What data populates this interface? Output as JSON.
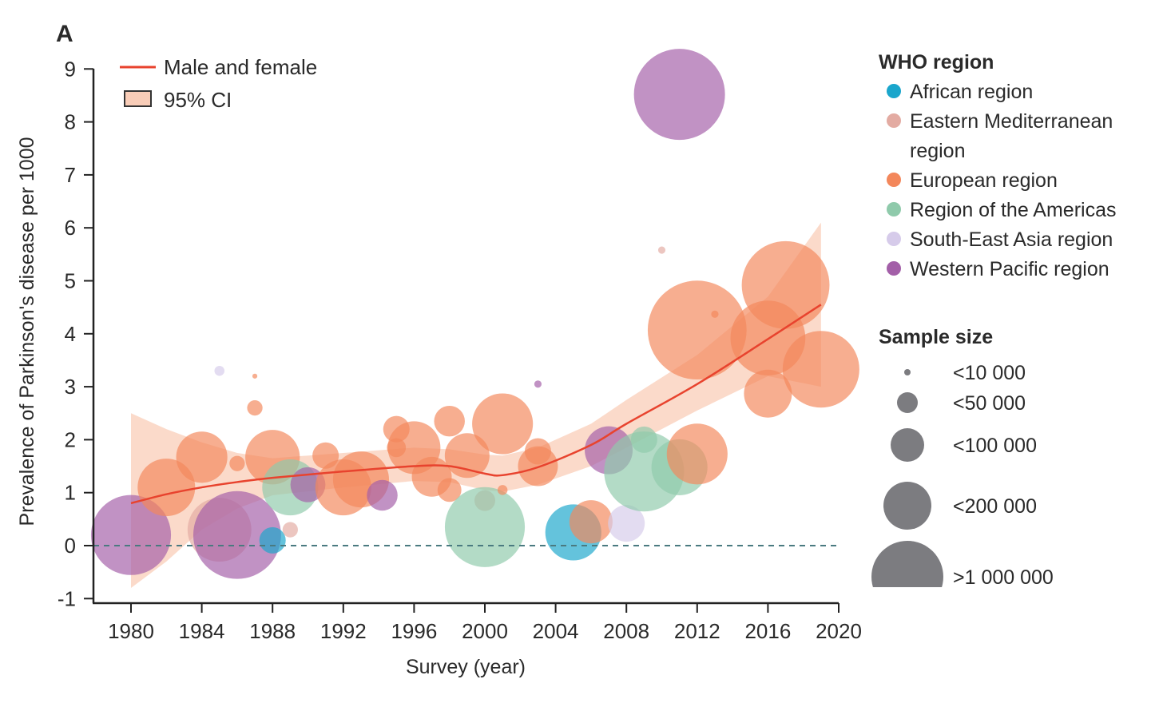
{
  "chart_data": {
    "type": "scatter",
    "panel_label": "A",
    "xlabel": "Survey (year)",
    "ylabel": "Prevalence of Parkinson's disease per 1000",
    "xlim": [
      1978,
      2020
    ],
    "ylim": [
      -1,
      9
    ],
    "x_ticks": [
      1980,
      1984,
      1988,
      1992,
      1996,
      2000,
      2004,
      2008,
      2012,
      2016,
      2020
    ],
    "y_ticks": [
      -1,
      0,
      1,
      2,
      3,
      4,
      5,
      6,
      7,
      8,
      9
    ],
    "reference_line": {
      "y": 0,
      "style": "dashed",
      "color": "#4a7a80"
    },
    "fit_legend": {
      "line_label": "Male and female",
      "ci_label": "95% CI"
    },
    "fit_color": "#e8432e",
    "ci_color": "#f9cdb8",
    "fit": [
      {
        "x": 1980,
        "y": 0.8,
        "lo": -0.8,
        "hi": 2.5
      },
      {
        "x": 1982,
        "y": 0.97,
        "lo": -0.3,
        "hi": 2.2
      },
      {
        "x": 1984,
        "y": 1.1,
        "lo": 0.3,
        "hi": 1.95
      },
      {
        "x": 1986,
        "y": 1.2,
        "lo": 0.7,
        "hi": 1.75
      },
      {
        "x": 1988,
        "y": 1.28,
        "lo": 0.95,
        "hi": 1.65
      },
      {
        "x": 1992,
        "y": 1.4,
        "lo": 1.1,
        "hi": 1.75
      },
      {
        "x": 1996,
        "y": 1.5,
        "lo": 1.22,
        "hi": 1.85
      },
      {
        "x": 1998,
        "y": 1.5,
        "lo": 1.2,
        "hi": 1.82
      },
      {
        "x": 2000,
        "y": 1.36,
        "lo": 1.05,
        "hi": 1.72
      },
      {
        "x": 2001,
        "y": 1.33,
        "lo": 1.02,
        "hi": 1.7
      },
      {
        "x": 2003,
        "y": 1.48,
        "lo": 1.15,
        "hi": 1.85
      },
      {
        "x": 2006,
        "y": 1.9,
        "lo": 1.5,
        "hi": 2.3
      },
      {
        "x": 2008,
        "y": 2.3,
        "lo": 1.85,
        "hi": 2.75
      },
      {
        "x": 2012,
        "y": 3.05,
        "lo": 2.55,
        "hi": 3.6
      },
      {
        "x": 2016,
        "y": 3.9,
        "lo": 3.2,
        "hi": 4.7
      },
      {
        "x": 2019,
        "y": 4.55,
        "lo": 3.0,
        "hi": 6.1
      }
    ],
    "regions_title": "WHO region",
    "regions": [
      {
        "key": "AFR",
        "label": "African region",
        "color": "#1aa6cc"
      },
      {
        "key": "EMR",
        "label": "Eastern Mediterranean region",
        "label_lines": [
          "Eastern Mediterranean",
          "region"
        ],
        "color": "#e3aba2"
      },
      {
        "key": "EUR",
        "label": "European region",
        "color": "#f3875b"
      },
      {
        "key": "AMR",
        "label": "Region of the Americas",
        "color": "#8fcaab"
      },
      {
        "key": "SEAR",
        "label": "South-East Asia region",
        "color": "#d6cbea"
      },
      {
        "key": "WPR",
        "label": "Western Pacific region",
        "color": "#a35fa8"
      }
    ],
    "size_title": "Sample size",
    "size_legend": [
      {
        "label": "<10 000",
        "n": 10000
      },
      {
        "label": "<50 000",
        "n": 50000
      },
      {
        "label": "<100 000",
        "n": 100000
      },
      {
        "label": "<200 000",
        "n": 200000
      },
      {
        "label": ">1 000 000",
        "n": 1000000
      }
    ],
    "points": [
      {
        "x": 1980,
        "y": 0.2,
        "n": 1270000,
        "r": "WPR"
      },
      {
        "x": 1982,
        "y": 1.1,
        "n": 520000,
        "r": "EUR"
      },
      {
        "x": 1984,
        "y": 1.67,
        "n": 310000,
        "r": "EUR"
      },
      {
        "x": 1985,
        "y": 0.3,
        "n": 730000,
        "r": "EMR"
      },
      {
        "x": 1986,
        "y": 0.2,
        "n": 1530000,
        "r": "WPR"
      },
      {
        "x": 1985,
        "y": 3.3,
        "n": 20000,
        "r": "SEAR"
      },
      {
        "x": 1987,
        "y": 3.2,
        "n": 7800,
        "r": "EUR"
      },
      {
        "x": 1987,
        "y": 2.6,
        "n": 35000,
        "r": "EUR"
      },
      {
        "x": 1986,
        "y": 1.55,
        "n": 35000,
        "r": "EUR"
      },
      {
        "x": 1988,
        "y": 1.67,
        "n": 420000,
        "r": "EUR"
      },
      {
        "x": 1989,
        "y": 1.1,
        "n": 470000,
        "r": "AMR"
      },
      {
        "x": 1990,
        "y": 1.15,
        "n": 110000,
        "r": "WPR"
      },
      {
        "x": 1988,
        "y": 0.1,
        "n": 72000,
        "r": "AFR"
      },
      {
        "x": 1989,
        "y": 0.3,
        "n": 35000,
        "r": "EMR"
      },
      {
        "x": 1991,
        "y": 1.7,
        "n": 72000,
        "r": "EUR"
      },
      {
        "x": 1992,
        "y": 1.1,
        "n": 470000,
        "r": "EUR"
      },
      {
        "x": 1993,
        "y": 1.25,
        "n": 470000,
        "r": "EUR"
      },
      {
        "x": 1994.2,
        "y": 0.95,
        "n": 89000,
        "r": "WPR"
      },
      {
        "x": 1995,
        "y": 2.2,
        "n": 72000,
        "r": "EUR"
      },
      {
        "x": 1996,
        "y": 1.85,
        "n": 360000,
        "r": "EUR"
      },
      {
        "x": 1995,
        "y": 1.85,
        "n": 45000,
        "r": "EUR"
      },
      {
        "x": 1997,
        "y": 1.3,
        "n": 144000,
        "r": "EUR"
      },
      {
        "x": 1998,
        "y": 2.35,
        "n": 89000,
        "r": "EUR"
      },
      {
        "x": 1999,
        "y": 1.7,
        "n": 178000,
        "r": "EUR"
      },
      {
        "x": 1998,
        "y": 1.05,
        "n": 62000,
        "r": "EUR"
      },
      {
        "x": 2001,
        "y": 2.3,
        "n": 630000,
        "r": "EUR"
      },
      {
        "x": 2000,
        "y": 0.85,
        "n": 50000,
        "r": "EMR"
      },
      {
        "x": 2000,
        "y": 0.35,
        "n": 1270000,
        "r": "AMR"
      },
      {
        "x": 2001,
        "y": 1.05,
        "n": 20000,
        "r": "EUR"
      },
      {
        "x": 2003,
        "y": 3.05,
        "n": 12500,
        "r": "WPR"
      },
      {
        "x": 2003,
        "y": 1.5,
        "n": 144000,
        "r": "EUR"
      },
      {
        "x": 2003,
        "y": 1.78,
        "n": 72000,
        "r": "EUR"
      },
      {
        "x": 2005,
        "y": 0.25,
        "n": 470000,
        "r": "AFR"
      },
      {
        "x": 2006,
        "y": 0.45,
        "n": 167000,
        "r": "EUR"
      },
      {
        "x": 2008,
        "y": 0.42,
        "n": 122000,
        "r": "SEAR"
      },
      {
        "x": 2007,
        "y": 1.8,
        "n": 200000,
        "r": "WPR"
      },
      {
        "x": 2009,
        "y": 1.4,
        "n": 1270000,
        "r": "AMR"
      },
      {
        "x": 2009,
        "y": 2.0,
        "n": 72000,
        "r": "AMR"
      },
      {
        "x": 2011,
        "y": 1.48,
        "n": 470000,
        "r": "AMR"
      },
      {
        "x": 2012,
        "y": 1.73,
        "n": 630000,
        "r": "EUR"
      },
      {
        "x": 2012,
        "y": 4.07,
        "n": 1900000,
        "r": "EUR"
      },
      {
        "x": 2010,
        "y": 5.58,
        "n": 12500,
        "r": "EMR"
      },
      {
        "x": 2011,
        "y": 8.52,
        "n": 1640000,
        "r": "WPR"
      },
      {
        "x": 2013,
        "y": 4.37,
        "n": 12500,
        "r": "EUR"
      },
      {
        "x": 2017,
        "y": 4.92,
        "n": 1530000,
        "r": "EUR"
      },
      {
        "x": 2016,
        "y": 3.92,
        "n": 1100000,
        "r": "EUR"
      },
      {
        "x": 2016,
        "y": 2.87,
        "n": 200000,
        "r": "EUR"
      },
      {
        "x": 2019,
        "y": 3.33,
        "n": 1160000,
        "r": "EUR"
      }
    ]
  }
}
